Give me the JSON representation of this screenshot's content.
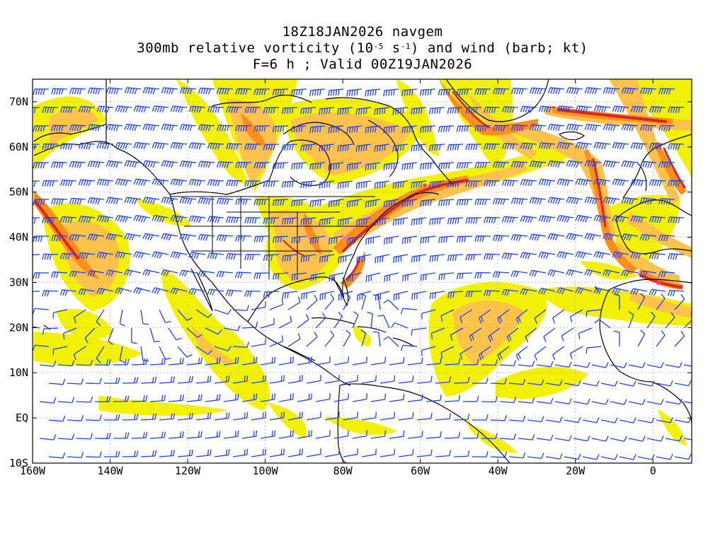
{
  "title": {
    "line1": "18Z18JAN2026 navgem",
    "line2_prefix": "300mb relative vorticity (10",
    "line2_exp1": "-5",
    "line2_mid": " s",
    "line2_exp2": "-1",
    "line2_suffix": ") and wind (barb; kt)",
    "line3": "F=6 h ; Valid 00Z19JAN2026"
  },
  "axes": {
    "lat_labels": [
      "70N",
      "60N",
      "50N",
      "40N",
      "30N",
      "20N",
      "10N",
      "EQ",
      "10S"
    ],
    "lat_values": [
      70,
      60,
      50,
      40,
      30,
      20,
      10,
      0,
      -10
    ],
    "lon_labels": [
      "160W",
      "140W",
      "120W",
      "100W",
      "80W",
      "60W",
      "40W",
      "20W",
      "0"
    ],
    "lon_values": [
      -160,
      -140,
      -120,
      -100,
      -80,
      -60,
      -40,
      -20,
      0
    ],
    "lon_range": [
      -160,
      10
    ],
    "lat_range": [
      -10,
      75
    ],
    "grid": "dotted"
  },
  "colors": {
    "shade_low": "#f2f200",
    "shade_mid": "#ffbf3c",
    "shade_high": "#ff7a00",
    "shade_max": "#d8281e",
    "barb": "#1f3fff",
    "coast": "#000000"
  }
}
